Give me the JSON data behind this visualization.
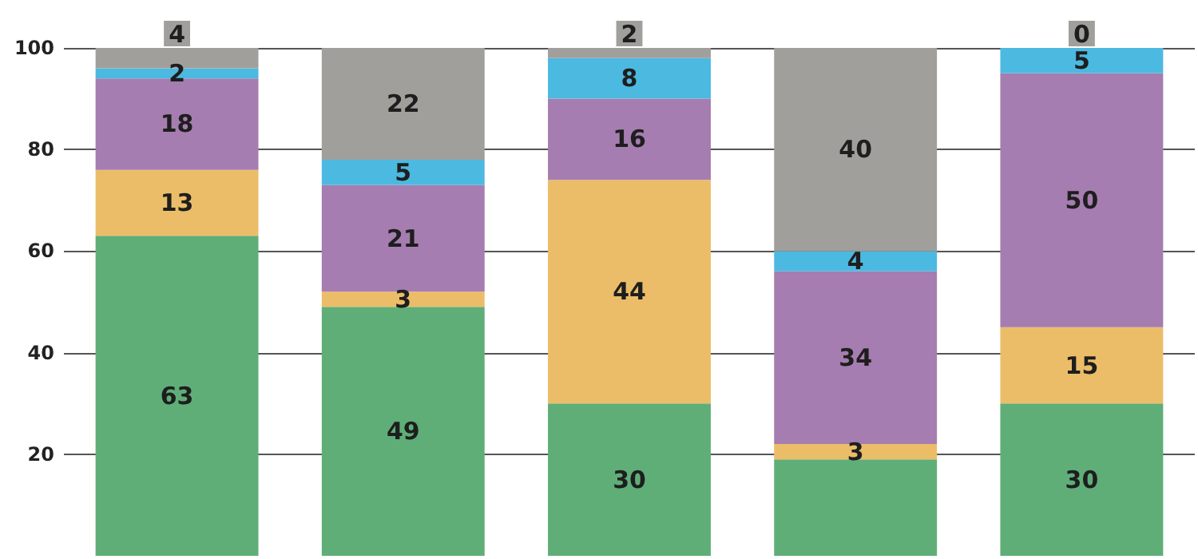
{
  "chart_data": {
    "type": "bar",
    "stacked": true,
    "categories": [
      null,
      null,
      null,
      null,
      null
    ],
    "series": [
      {
        "color": "#5fae78",
        "values": [
          63,
          49,
          30,
          19,
          30
        ],
        "value_labels": [
          "63",
          "49",
          "30",
          null,
          "30"
        ]
      },
      {
        "color": "#ecbd68",
        "values": [
          13,
          3,
          44,
          3,
          15
        ],
        "value_labels": [
          "13",
          "3",
          "44",
          "3",
          "15"
        ]
      },
      {
        "color": "#a67db0",
        "values": [
          18,
          21,
          16,
          34,
          50
        ],
        "value_labels": [
          "18",
          "21",
          "16",
          "34",
          "50"
        ]
      },
      {
        "color": "#4cb9e1",
        "values": [
          2,
          5,
          8,
          4,
          5
        ],
        "value_labels": [
          "2",
          "5",
          "8",
          "4",
          "5"
        ]
      },
      {
        "color": "#a19f9b",
        "values": [
          4,
          22,
          2,
          40,
          0
        ],
        "value_labels": [
          "4",
          "22",
          "2",
          "40",
          "0"
        ]
      }
    ],
    "ylim": [
      0,
      100
    ],
    "yticks": [
      20,
      40,
      60,
      80,
      100
    ],
    "grid": "y",
    "tick_labels": "y"
  }
}
